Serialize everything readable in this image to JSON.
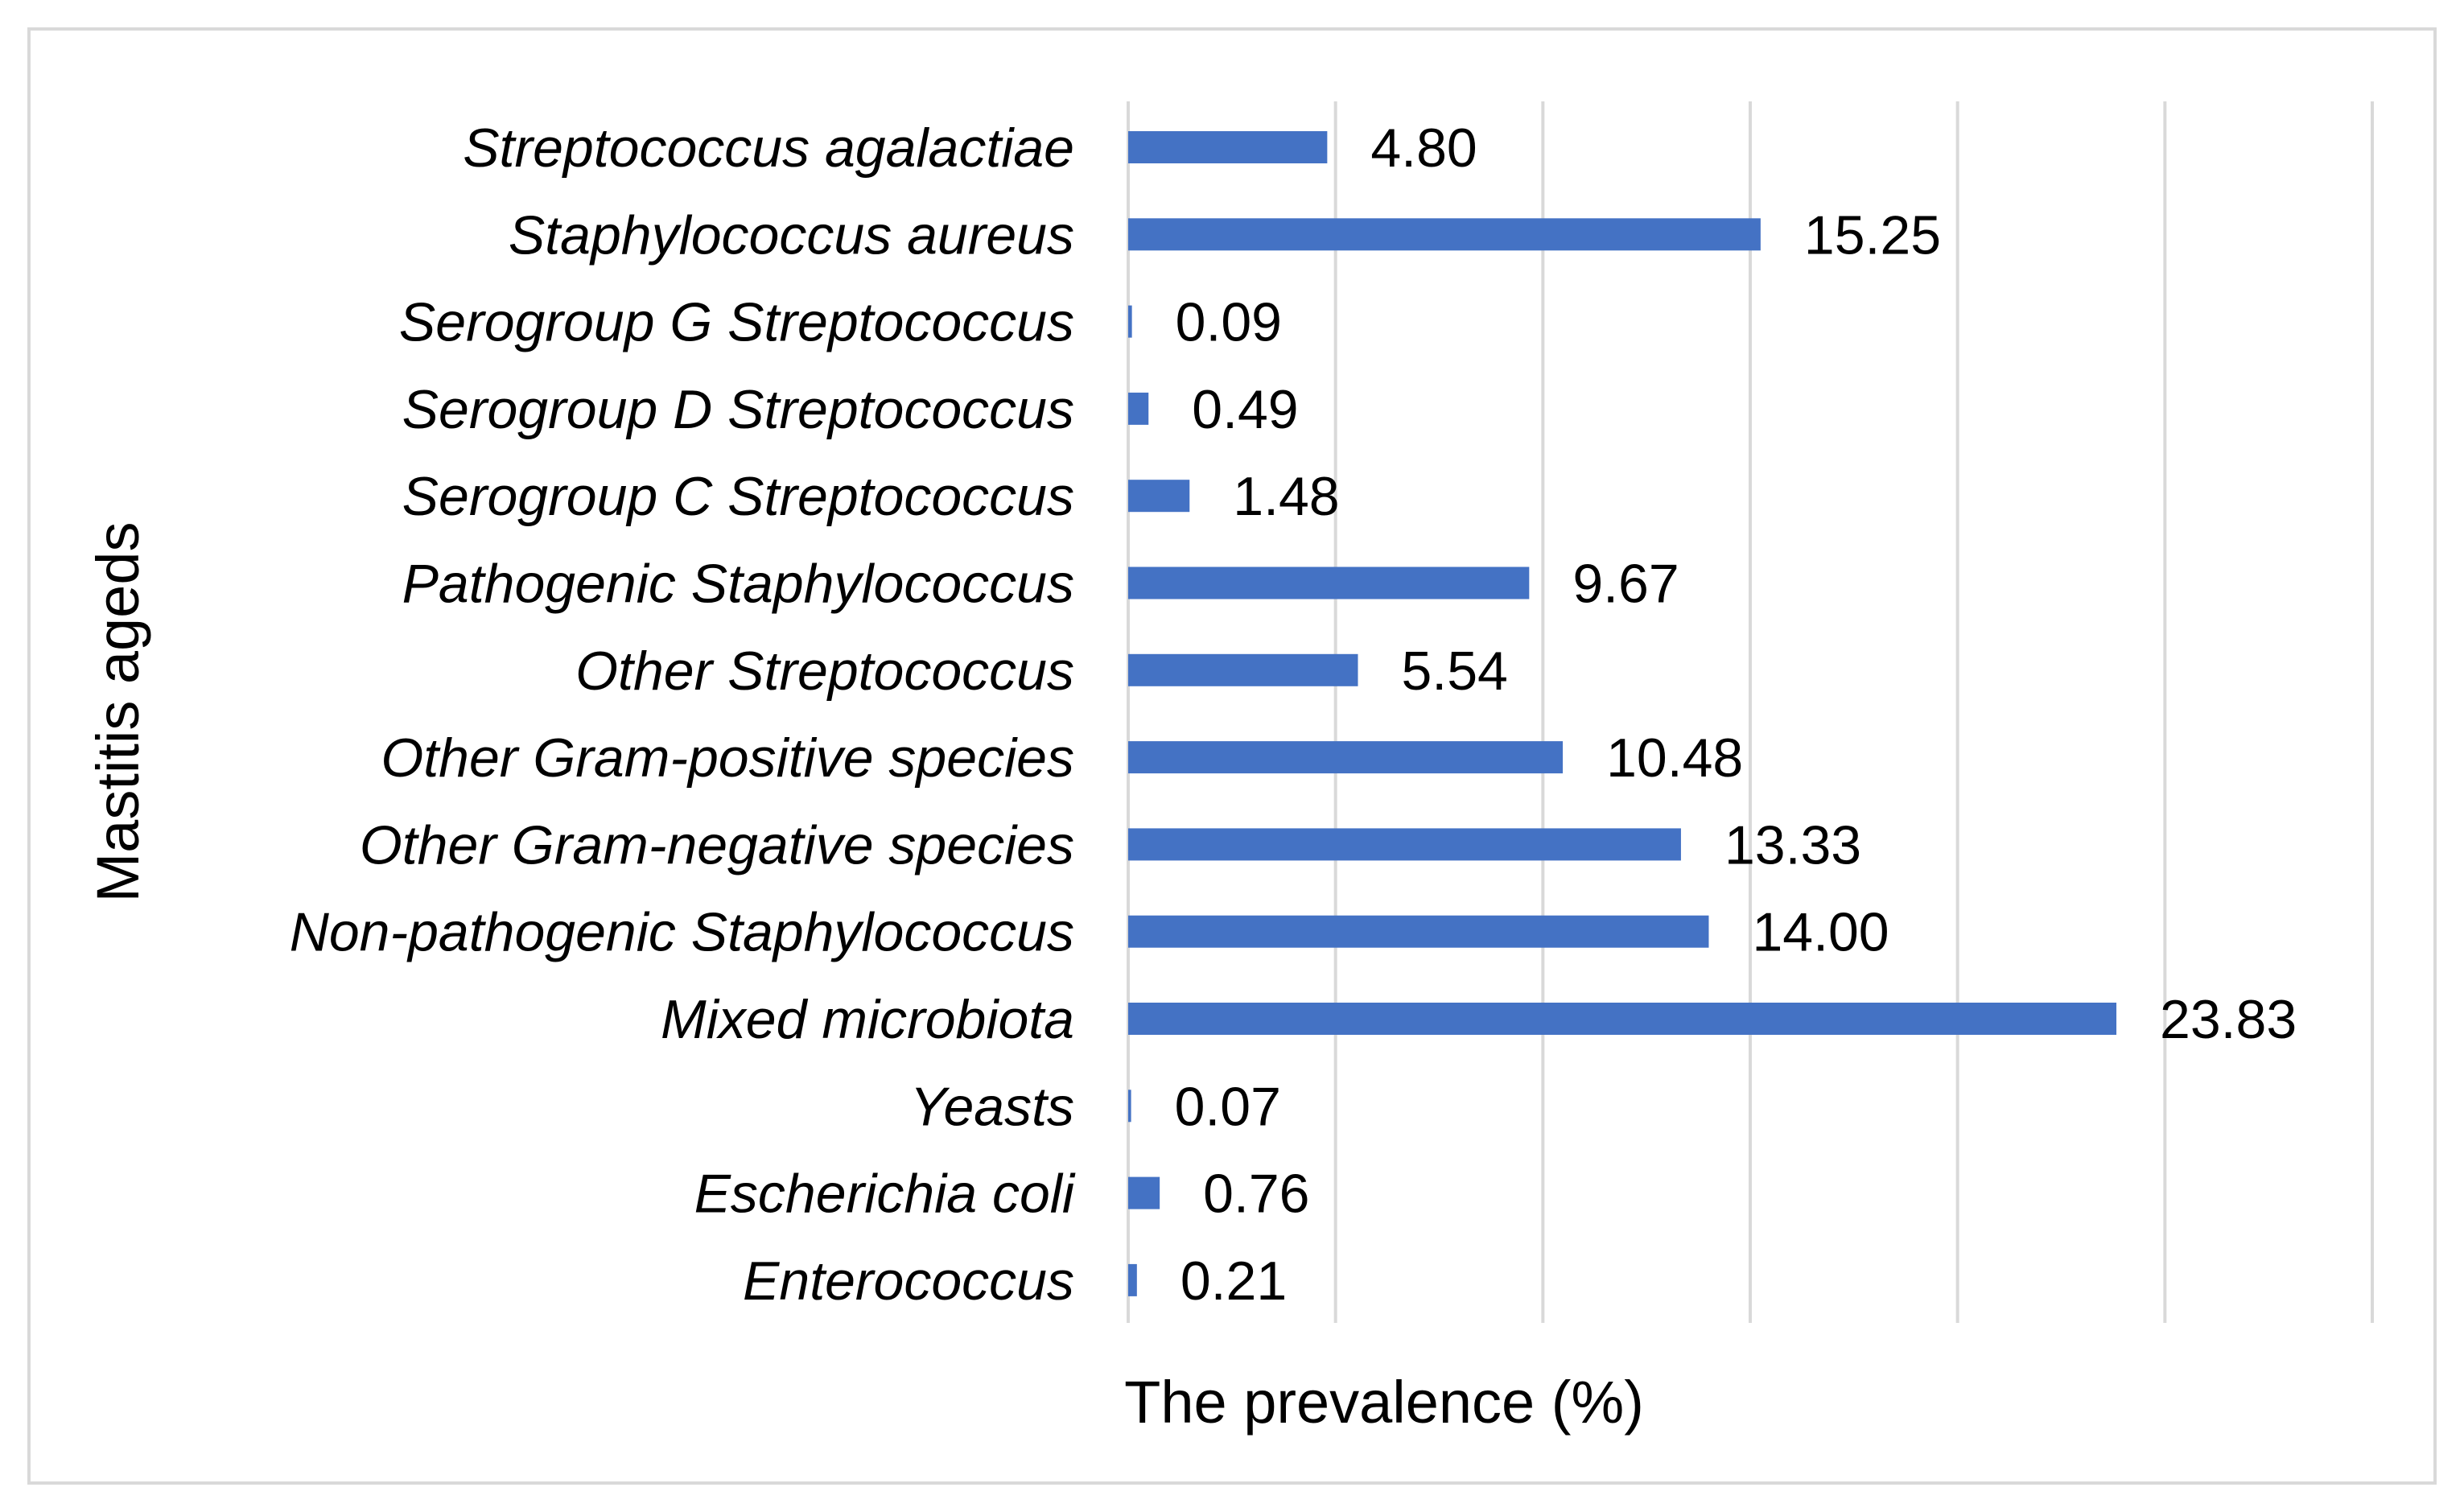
{
  "chart_data": {
    "type": "bar",
    "orientation": "horizontal",
    "title": "",
    "xlabel": "The prevalence (%)",
    "ylabel": "Mastitis ageds",
    "xlim": [
      0,
      30
    ],
    "x_gridline_step": 5,
    "grid": "vertical",
    "legend": "none",
    "categories": [
      "Streptococcus agalactiae",
      "Staphylococcus aureus",
      "Serogroup G Streptococcus",
      "Serogroup D Streptococcus",
      "Serogroup C Streptococcus",
      "Pathogenic Staphylococcus",
      "Other Streptococcus",
      "Other Gram-positive species",
      "Other Gram-negative species",
      "Non-pathogenic Staphylococcus",
      "Mixed microbiota",
      "Yeasts",
      "Escherichia coli",
      "Enterococcus"
    ],
    "values": [
      4.8,
      15.25,
      0.09,
      0.49,
      1.48,
      9.67,
      5.54,
      10.48,
      13.33,
      14.0,
      23.83,
      0.07,
      0.76,
      0.21
    ],
    "value_labels": [
      "4.80",
      "15.25",
      "0.09",
      "0.49",
      "1.48",
      "9.67",
      "5.54",
      "10.48",
      "13.33",
      "14.00",
      "23.83",
      "0.07",
      "0.76",
      "0.21"
    ],
    "colors": {
      "bar": "#4472c4",
      "grid": "#d9d9d9",
      "frame": "#d9d9d9",
      "text": "#000000"
    }
  }
}
